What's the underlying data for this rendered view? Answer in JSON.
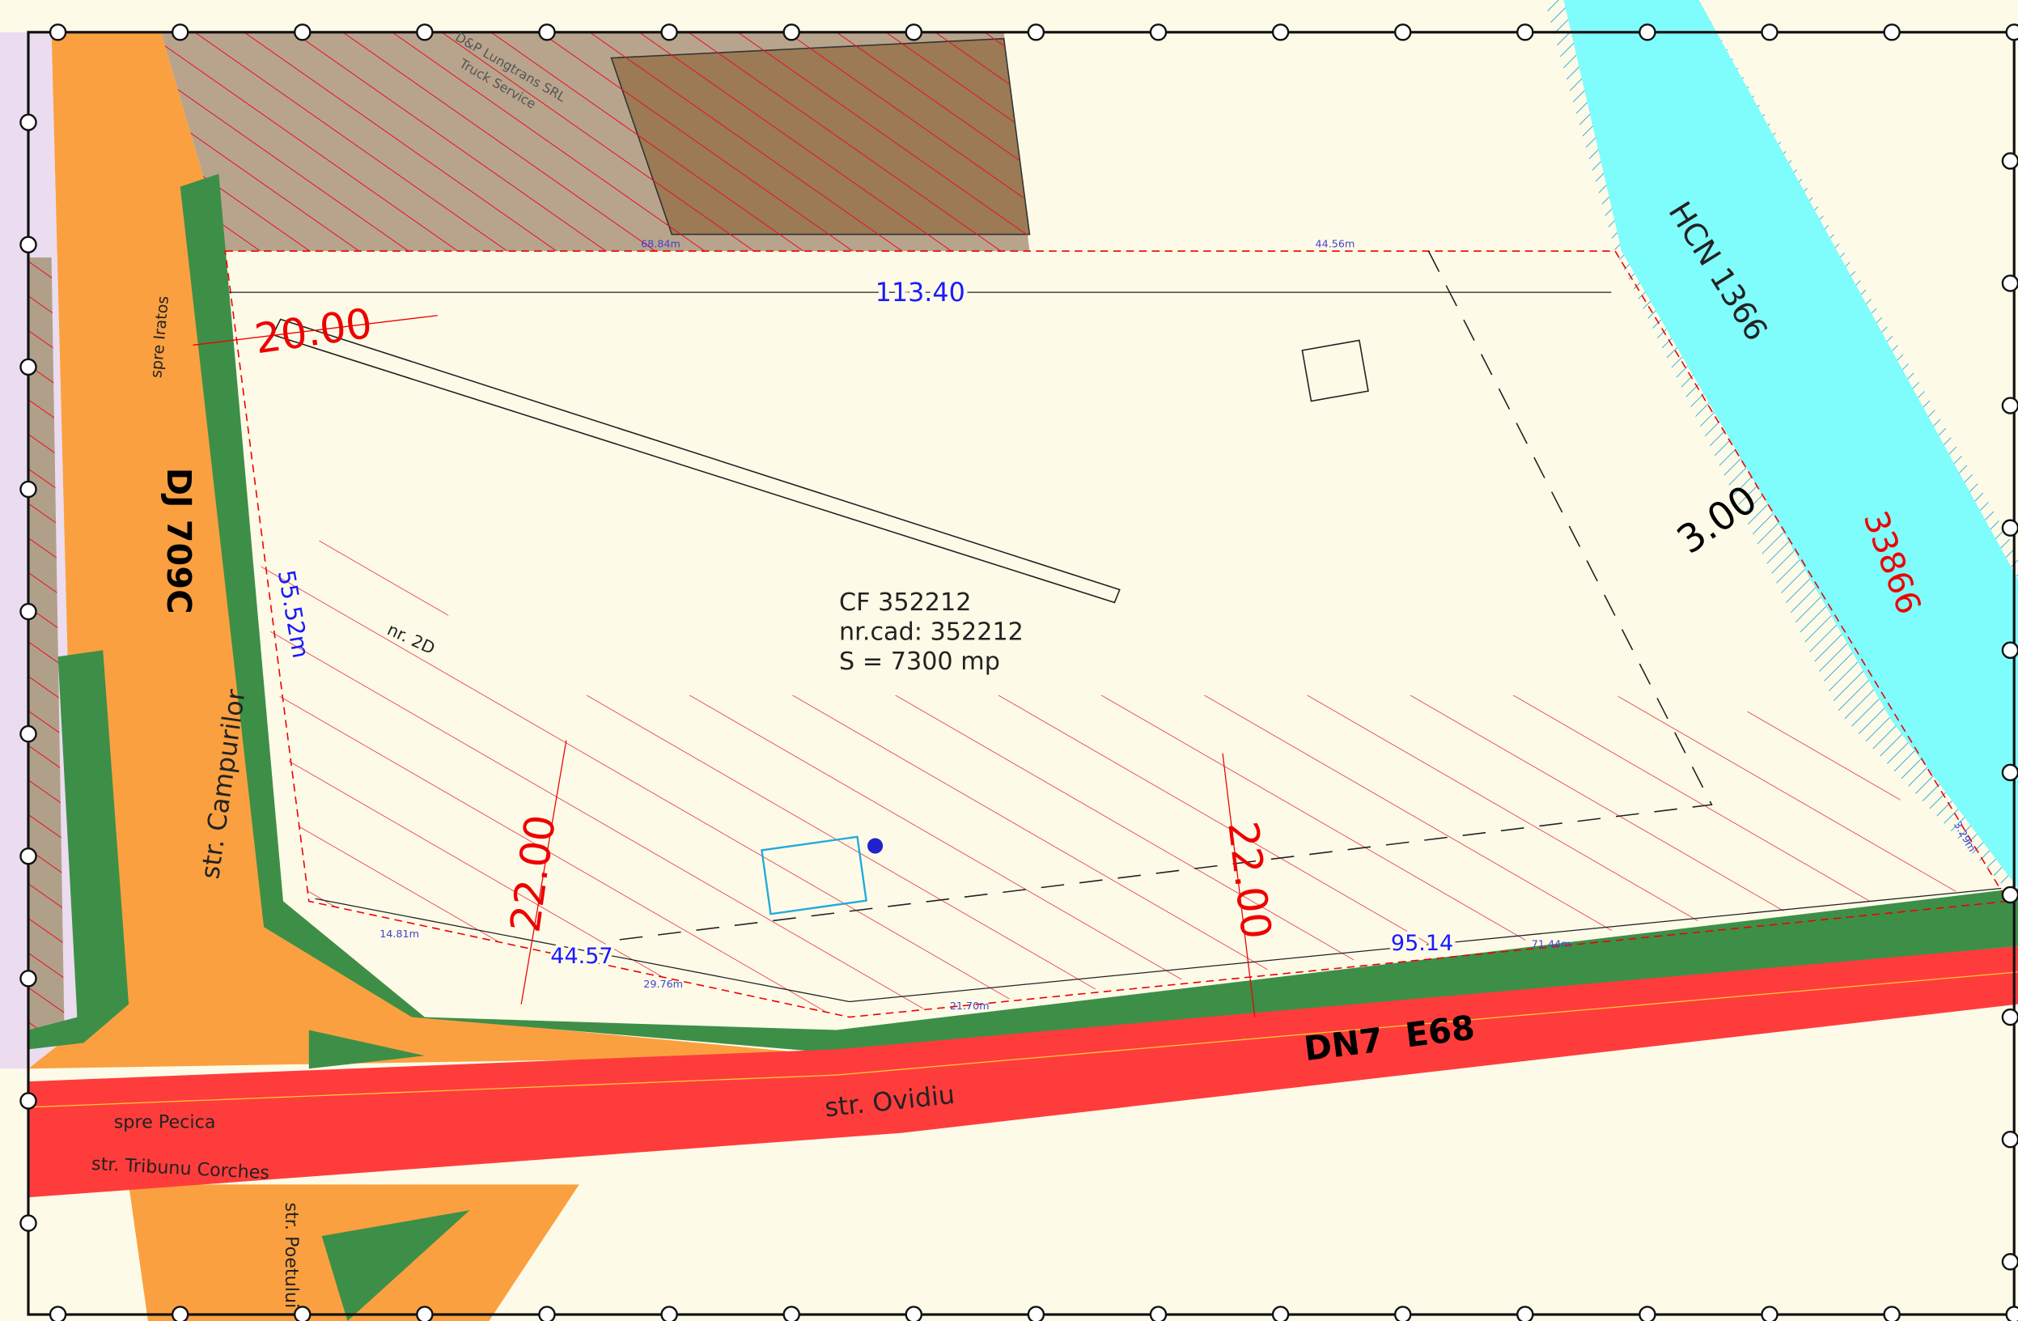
{
  "labels": {
    "dj": "DJ 709C",
    "campurilor": "str. Campurilor",
    "iratos": "spre Iratos",
    "dn7": "DN7",
    "e68": "E68",
    "ovidiu": "str. Ovidiu",
    "pecica": "spre Pecica",
    "tribunu": "str. Tribunu Corches",
    "poetului": "str. Poetului",
    "hcn": "HCN 1366",
    "parcel_no": "33866",
    "company": "D&P Lungtrans SRL",
    "company2": "Truck Service",
    "house_no": "nr. 2D"
  },
  "parcel": {
    "cf": "CF 352212",
    "cad": "nr.cad: 352212",
    "area": "S = 7300 mp"
  },
  "dimensions": {
    "top": "113.40",
    "setback_left": "20.00",
    "left": "55.52m",
    "setback_bottom_left": "22.00",
    "setback_bottom_right": "22.00",
    "river": "3.00",
    "bottom_left": "44.57",
    "bottom_right": "95.14"
  },
  "segments": {
    "s1": "68.84m",
    "s2": "44.56m",
    "s3": "14.81m",
    "s4": "29.76m",
    "s5": "21.70m",
    "s6": "71.44m",
    "s7": "3.29m"
  }
}
